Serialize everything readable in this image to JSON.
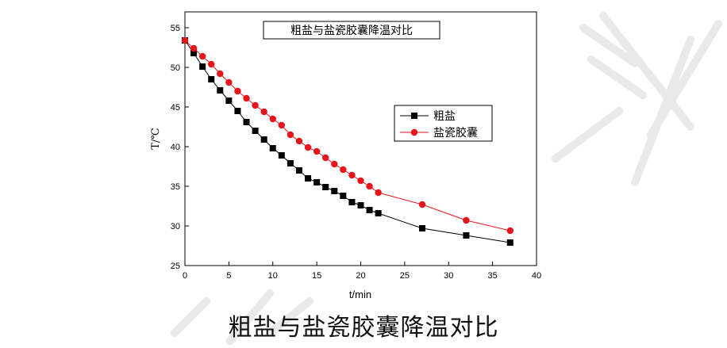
{
  "caption": "粗盐与盐瓷胶囊降温对比",
  "chart_data": {
    "type": "line",
    "title": "粗盐与盐瓷胶囊降温对比",
    "xlabel": "t/min",
    "ylabel": "T/℃",
    "xlim": [
      0,
      40
    ],
    "ylim": [
      25,
      57
    ],
    "xticks": [
      0,
      5,
      10,
      15,
      20,
      25,
      30,
      35,
      40
    ],
    "yticks": [
      25,
      30,
      35,
      40,
      45,
      50,
      55
    ],
    "legend_position": "center-right",
    "grid": false,
    "series": [
      {
        "name": "粗盐",
        "color": "#000000",
        "marker": "square",
        "x": [
          0,
          1,
          2,
          3,
          4,
          5,
          6,
          7,
          8,
          9,
          10,
          11,
          12,
          13,
          14,
          15,
          16,
          17,
          18,
          19,
          20,
          21,
          22,
          27,
          32,
          37
        ],
        "y": [
          53.4,
          51.8,
          50.1,
          48.5,
          47.1,
          45.8,
          44.5,
          43.1,
          42.0,
          40.9,
          39.8,
          38.9,
          37.9,
          37.0,
          36.0,
          35.5,
          34.9,
          34.4,
          33.8,
          33.0,
          32.6,
          32.0,
          31.6,
          29.7,
          28.8,
          27.9
        ]
      },
      {
        "name": "盐瓷胶囊",
        "color": "#e8141b",
        "marker": "circle",
        "x": [
          0,
          1,
          2,
          3,
          4,
          5,
          6,
          7,
          8,
          9,
          10,
          11,
          12,
          13,
          14,
          15,
          16,
          17,
          18,
          19,
          20,
          21,
          22,
          27,
          32,
          37
        ],
        "y": [
          53.4,
          52.4,
          51.4,
          50.4,
          49.2,
          48.1,
          47.0,
          46.1,
          45.2,
          44.4,
          43.5,
          42.7,
          41.5,
          40.7,
          39.9,
          39.4,
          38.6,
          37.8,
          37.1,
          36.4,
          35.7,
          35.0,
          34.2,
          32.7,
          30.7,
          29.4
        ]
      }
    ]
  }
}
